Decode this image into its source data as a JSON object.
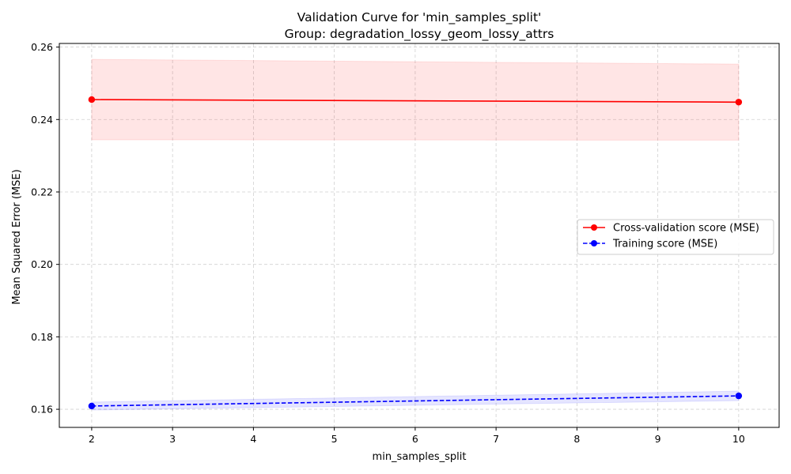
{
  "chart_data": {
    "type": "line",
    "title": "Validation Curve for 'min_samples_split'",
    "subtitle": "Group: degradation_lossy_geom_lossy_attrs",
    "xlabel": "min_samples_split",
    "ylabel": "Mean Squared Error (MSE)",
    "xlim": [
      1.6,
      10.5
    ],
    "ylim": [
      0.155,
      0.261
    ],
    "xticks": [
      2,
      3,
      4,
      5,
      6,
      7,
      8,
      9,
      10
    ],
    "yticks": [
      0.16,
      0.18,
      0.2,
      0.22,
      0.24,
      0.26
    ],
    "ytick_labels": [
      "0.16",
      "0.18",
      "0.20",
      "0.22",
      "0.24",
      "0.26"
    ],
    "grid": true,
    "legend_position": "center-right",
    "series": [
      {
        "name": "Cross-validation score (MSE)",
        "color": "#ff0000",
        "band_color": "#ff0000",
        "line_style": "solid",
        "marker": "circle",
        "x": [
          2,
          10
        ],
        "y": [
          0.2455,
          0.2448
        ],
        "band_lower": [
          0.2344,
          0.2343
        ],
        "band_upper": [
          0.2566,
          0.2553
        ]
      },
      {
        "name": "Training score (MSE)",
        "color": "#0000ff",
        "band_color": "#0000ff",
        "line_style": "dashed",
        "marker": "circle",
        "x": [
          2,
          10
        ],
        "y": [
          0.1609,
          0.1637
        ],
        "band_lower": [
          0.1598,
          0.1624
        ],
        "band_upper": [
          0.162,
          0.165
        ]
      }
    ]
  }
}
